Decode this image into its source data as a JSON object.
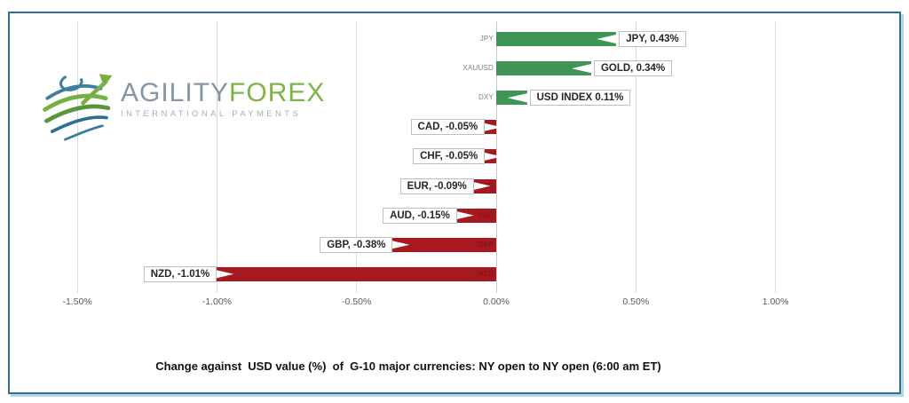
{
  "brand": {
    "name_primary": "AGILITY",
    "name_secondary": "FOREX",
    "tagline": "INTERNATIONAL PAYMENTS"
  },
  "caption": "Change against  USD value (%)  of  G-10 major currencies: NY open to NY open (6:00 am ET)",
  "chart_data": {
    "type": "bar",
    "orientation": "horizontal",
    "categories": [
      "JPY",
      "XAUUSD",
      "DXY",
      "CAD",
      "CHF",
      "EUR",
      "AUD",
      "GBP",
      "NZD"
    ],
    "values": [
      0.43,
      0.34,
      0.11,
      -0.05,
      -0.05,
      -0.09,
      -0.15,
      -0.38,
      -1.01
    ],
    "data_labels": [
      "JPY, 0.43%",
      "GOLD, 0.34%",
      "USD INDEX 0.11%",
      "CAD, -0.05%",
      "CHF, -0.05%",
      "EUR, -0.09%",
      "AUD, -0.15%",
      "GBP, -0.38%",
      "NZD, -1.01%"
    ],
    "x_ticks": [
      {
        "label": "-1.50%",
        "value": -1.5
      },
      {
        "label": "-1.00%",
        "value": -1.0
      },
      {
        "label": "-0.50%",
        "value": -0.5
      },
      {
        "label": "0.00%",
        "value": 0.0
      },
      {
        "label": "0.50%",
        "value": 0.5
      },
      {
        "label": "1.00%",
        "value": 1.0
      }
    ],
    "xlim": [
      -1.5,
      1.0
    ],
    "grid": true,
    "legend": "none",
    "colors": {
      "positive": "#3E9555",
      "negative": "#A6191F",
      "grid": "#D9D9D9",
      "axis": "#C9C9C9",
      "tick_text": "#595959",
      "category_positive": "#7F7F7F",
      "category_negative": "#7E1419",
      "callout_border": "#BFBFBF",
      "callout_text": "#262626"
    }
  },
  "frame": {
    "border_color": "#2E6F91",
    "shadow_color": "#AFD8EA",
    "background": "#FFFFFF"
  }
}
